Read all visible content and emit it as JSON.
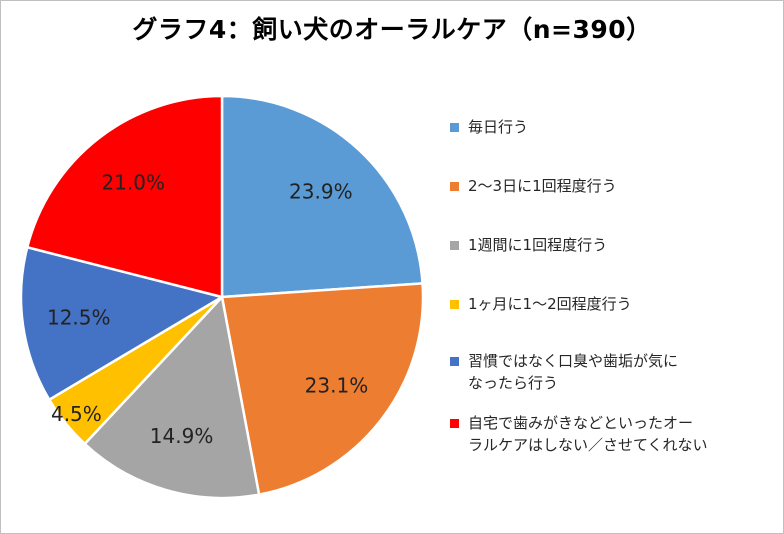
{
  "chart_data": {
    "type": "pie",
    "title": "グラフ4：飼い犬のオーラルケア（n=390）",
    "categories": [
      "毎日行う",
      "2～3日に1回程度行う",
      "1週間に1回程度行う",
      "1ヶ月に1～2回程度行う",
      "習慣ではなく口臭や歯垢が気になったら行う",
      "自宅で歯みがきなどといったオーラルケアはしない／させてくれない"
    ],
    "values": [
      23.9,
      23.1,
      14.9,
      4.5,
      12.5,
      21.0
    ],
    "data_labels": [
      "23.9%",
      "23.1%",
      "14.9%",
      "4.5%",
      "12.5%",
      "21.0%"
    ],
    "colors": [
      "#5b9bd5",
      "#ed7d31",
      "#a5a5a5",
      "#ffc000",
      "#4472c4",
      "#ff0000"
    ],
    "legend_lines": [
      [
        "毎日行う"
      ],
      [
        "2～3日に1回程度行う"
      ],
      [
        "1週間に1回程度行う"
      ],
      [
        "1ヶ月に1～2回程度行う"
      ],
      [
        "習慣ではなく口臭や歯垢が気に",
        "なったら行う"
      ],
      [
        "自宅で歯みがきなどといったオー",
        "ラルケアはしない／させてくれない"
      ]
    ],
    "legend_position": "right"
  }
}
